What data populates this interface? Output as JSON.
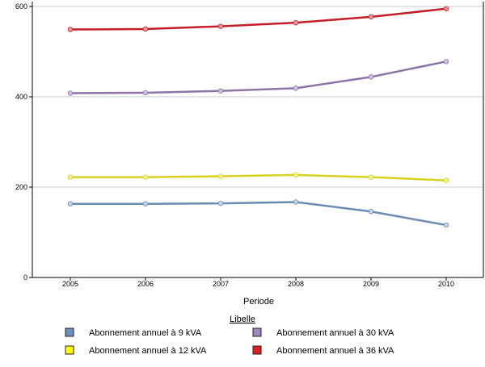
{
  "chart_data": {
    "type": "line",
    "title": "",
    "xlabel": "Periode",
    "ylabel": "",
    "x": [
      "2005",
      "2006",
      "2007",
      "2008",
      "2009",
      "2010"
    ],
    "ylim": [
      0,
      600
    ],
    "yticks": [
      0,
      200,
      400,
      600
    ],
    "grid": "horizontal",
    "legend_title": "Libelle",
    "legend_position": "bottom",
    "series": [
      {
        "name": "Abonnement annuel à 9 kVA",
        "color": "#6a8bb4",
        "marker_color": "#c8d4ea",
        "values": [
          163,
          163,
          164,
          167,
          146,
          116
        ]
      },
      {
        "name": "Abonnement annuel à 12 kVA",
        "color": "#d6d21e",
        "marker_color": "#f1f09a",
        "values": [
          222,
          222,
          224,
          227,
          222,
          215
        ]
      },
      {
        "name": "Abonnement annuel à 30 kVA",
        "color": "#8c74a6",
        "marker_color": "#cfc1e0",
        "values": [
          408,
          409,
          413,
          419,
          444,
          478
        ]
      },
      {
        "name": "Abonnement annuel à 36 kVA",
        "color": "#c41d25",
        "marker_color": "#ef9aa0",
        "values": [
          549,
          550,
          556,
          564,
          577,
          595
        ]
      }
    ],
    "legend_box_colors": {
      "Abonnement annuel à 9 kVA": "#6e8fc0",
      "Abonnement annuel à 12 kVA": "#ffff00",
      "Abonnement annuel à 30 kVA": "#9e86c0",
      "Abonnement annuel à 36 kVA": "#e01c24"
    }
  }
}
